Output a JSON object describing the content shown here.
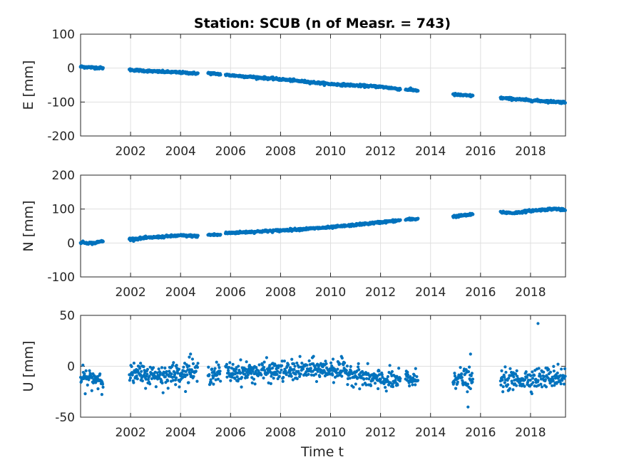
{
  "figure": {
    "title": "Station: SCUB (n of Measr. = 743)",
    "xlabel": "Time t",
    "marker_color": "#0072BD"
  },
  "chart_data": [
    {
      "type": "scatter",
      "panel": "east",
      "ylabel": "E [mm]",
      "xlim": [
        2000.0,
        2019.4
      ],
      "ylim": [
        -200,
        100
      ],
      "xticks": [
        2002,
        2004,
        2006,
        2008,
        2010,
        2012,
        2014,
        2016,
        2018
      ],
      "yticks": [
        100,
        0,
        -100,
        -200
      ],
      "grid": true,
      "series": [
        {
          "segments": [
            {
              "x": [
                2000.0,
                2000.9
              ],
              "y": [
                4,
                0
              ]
            },
            {
              "x": [
                2001.95,
                2003.0,
                2004.0,
                2004.7
              ],
              "y": [
                -5,
                -10,
                -13,
                -16
              ]
            },
            {
              "x": [
                2005.1,
                2005.6
              ],
              "y": [
                -15,
                -18
              ]
            },
            {
              "x": [
                2005.8,
                2008.0,
                2010.0,
                2012.0,
                2012.8
              ],
              "y": [
                -20,
                -33,
                -47,
                -55,
                -62
              ]
            },
            {
              "x": [
                2013.0,
                2013.5
              ],
              "y": [
                -63,
                -66
              ]
            },
            {
              "x": [
                2014.9,
                2015.7
              ],
              "y": [
                -78,
                -82
              ]
            },
            {
              "x": [
                2016.8,
                2018.0,
                2019.4
              ],
              "y": [
                -88,
                -95,
                -101
              ]
            }
          ]
        }
      ]
    },
    {
      "type": "scatter",
      "panel": "north",
      "ylabel": "N [mm]",
      "xlim": [
        2000.0,
        2019.4
      ],
      "ylim": [
        -100,
        200
      ],
      "xticks": [
        2002,
        2004,
        2006,
        2008,
        2010,
        2012,
        2014,
        2016,
        2018
      ],
      "yticks": [
        200,
        100,
        0,
        -100
      ],
      "grid": true,
      "series": [
        {
          "segments": [
            {
              "x": [
                2000.0,
                2000.5,
                2000.9
              ],
              "y": [
                2,
                -1,
                6
              ]
            },
            {
              "x": [
                2001.95,
                2003.0,
                2004.0,
                2004.7
              ],
              "y": [
                11,
                17,
                22,
                20
              ]
            },
            {
              "x": [
                2005.1,
                2005.6
              ],
              "y": [
                24,
                24
              ]
            },
            {
              "x": [
                2005.8,
                2008.0,
                2010.0,
                2012.0,
                2012.8
              ],
              "y": [
                29,
                37,
                46,
                61,
                67
              ]
            },
            {
              "x": [
                2013.0,
                2013.5
              ],
              "y": [
                69,
                71
              ]
            },
            {
              "x": [
                2014.9,
                2015.7
              ],
              "y": [
                78,
                84
              ]
            },
            {
              "x": [
                2016.8,
                2017.3,
                2018.0,
                2019.0,
                2019.4
              ],
              "y": [
                91,
                88,
                95,
                101,
                96
              ]
            }
          ]
        }
      ]
    },
    {
      "type": "scatter",
      "panel": "up",
      "ylabel": "U [mm]",
      "xlim": [
        2000.0,
        2019.4
      ],
      "ylim": [
        -50,
        50
      ],
      "xticks": [
        2002,
        2004,
        2006,
        2008,
        2010,
        2012,
        2014,
        2016,
        2018
      ],
      "yticks": [
        50,
        0,
        -50
      ],
      "grid": true,
      "series": [
        {
          "segments": [
            {
              "x": [
                2000.0,
                2000.9
              ],
              "y": [
                -12,
                -12
              ]
            },
            {
              "x": [
                2001.95,
                2003.0,
                2004.0,
                2004.7
              ],
              "y": [
                -8,
                -9,
                -6,
                -6
              ]
            },
            {
              "x": [
                2005.1,
                2005.6
              ],
              "y": [
                -7,
                -7
              ]
            },
            {
              "x": [
                2005.8,
                2008.0,
                2009.5,
                2010.5,
                2011.5,
                2012.8
              ],
              "y": [
                -6,
                -5,
                -3,
                -4,
                -12,
                -15
              ]
            },
            {
              "x": [
                2013.0,
                2013.5
              ],
              "y": [
                -12,
                -14
              ]
            },
            {
              "x": [
                2014.9,
                2015.7
              ],
              "y": [
                -10,
                -14
              ]
            },
            {
              "x": [
                2016.8,
                2018.0,
                2019.4
              ],
              "y": [
                -14,
                -12,
                -10
              ]
            }
          ],
          "outliers": [
            {
              "x": 2004.4,
              "y": 12
            },
            {
              "x": 2004.35,
              "y": 9
            },
            {
              "x": 2003.3,
              "y": -26
            },
            {
              "x": 2003.8,
              "y": -18
            },
            {
              "x": 2002.4,
              "y": 3
            },
            {
              "x": 2010.1,
              "y": 7
            },
            {
              "x": 2015.6,
              "y": 12
            },
            {
              "x": 2015.5,
              "y": -40
            },
            {
              "x": 2015.6,
              "y": -22
            },
            {
              "x": 2018.3,
              "y": 42
            },
            {
              "x": 2017.3,
              "y": -23
            },
            {
              "x": 2011.9,
              "y": -22
            },
            {
              "x": 2019.1,
              "y": 2
            }
          ]
        }
      ]
    }
  ]
}
